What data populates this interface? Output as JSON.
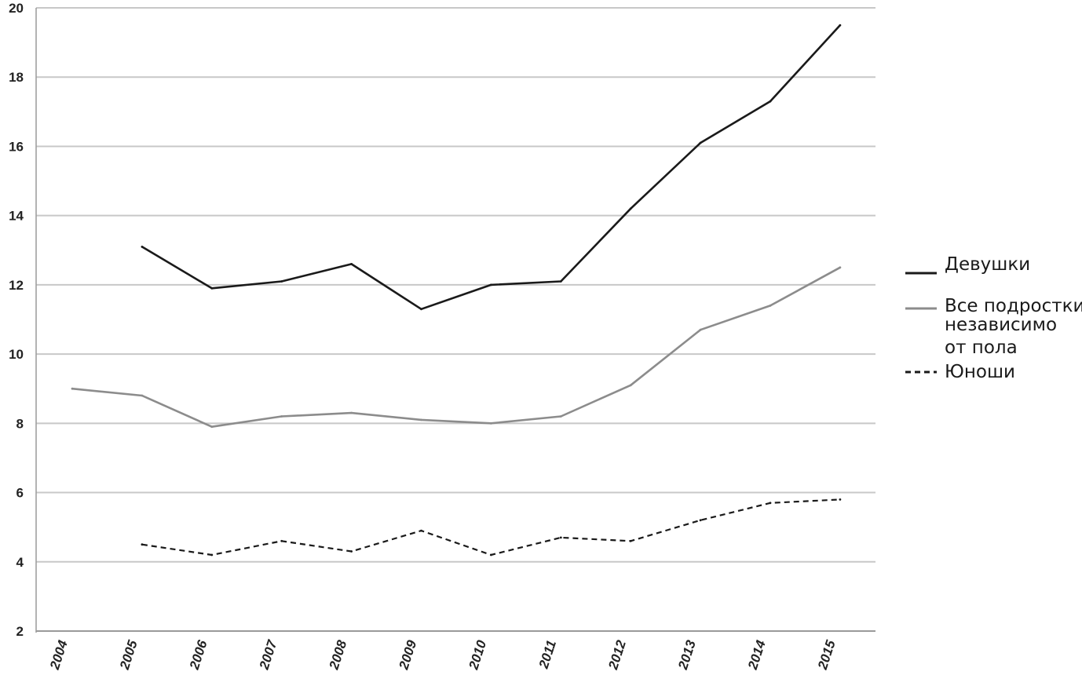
{
  "chart_data": {
    "type": "line",
    "title": "",
    "xlabel": "",
    "ylabel": "",
    "ylim": [
      2,
      20
    ],
    "y_ticks": [
      "2",
      "4",
      "6",
      "8",
      "10",
      "12",
      "14",
      "16",
      "18",
      "20"
    ],
    "categories": [
      "2004",
      "2005",
      "2006",
      "2007",
      "2008",
      "2009",
      "2010",
      "2011",
      "2012",
      "2013",
      "2014",
      "2015"
    ],
    "grid": "horizontal",
    "legend_position": "right",
    "series": [
      {
        "name": "Девушки",
        "color": "#1a1a1a",
        "style": "solid",
        "values": [
          null,
          13.1,
          11.9,
          12.1,
          12.6,
          11.3,
          12.0,
          12.1,
          14.2,
          16.1,
          17.3,
          19.5
        ]
      },
      {
        "name": "Все подростки независимо от пола",
        "name_lines": [
          "Все подростки",
          "независимо",
          "от пола"
        ],
        "color": "#8c8c8c",
        "style": "solid",
        "values": [
          9.0,
          8.8,
          7.9,
          8.2,
          8.3,
          8.1,
          8.0,
          8.2,
          9.1,
          10.7,
          11.4,
          12.5
        ]
      },
      {
        "name": "Юноши",
        "color": "#1a1a1a",
        "style": "dashed",
        "values": [
          null,
          4.5,
          4.2,
          4.6,
          4.3,
          4.9,
          4.2,
          4.7,
          4.6,
          5.2,
          5.7,
          5.8
        ]
      }
    ]
  }
}
